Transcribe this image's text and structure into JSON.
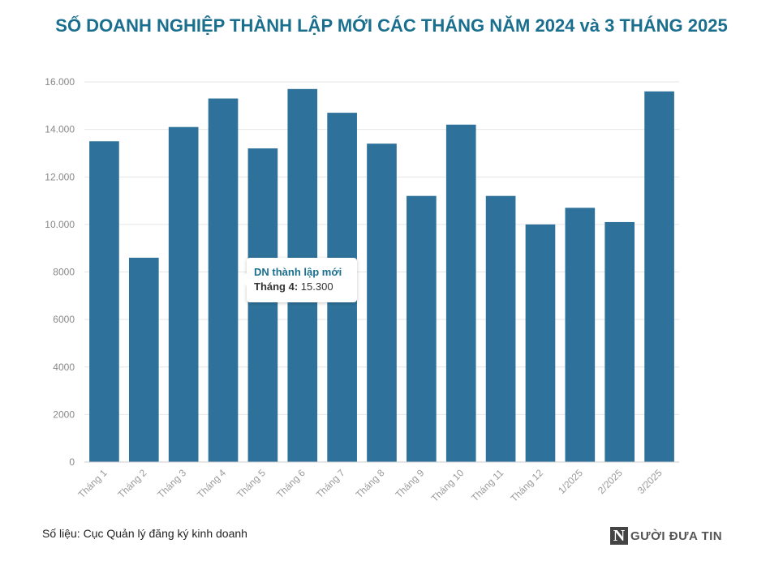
{
  "chart_data": {
    "type": "bar",
    "title": "SỐ DOANH NGHIỆP THÀNH LẬP MỚI CÁC THÁNG NĂM 2024 và 3 THÁNG 2025",
    "categories": [
      "Tháng 1",
      "Tháng 2",
      "Tháng 3",
      "Tháng 4",
      "Tháng 5",
      "Tháng 6",
      "Tháng 7",
      "Tháng 8",
      "Tháng 9",
      "Tháng 10",
      "Tháng 11",
      "Tháng 12",
      "1/2025",
      "2/2025",
      "3/2025"
    ],
    "series": [
      {
        "name": "DN thành lập mới",
        "values": [
          13500,
          8600,
          14100,
          15300,
          13200,
          15700,
          14700,
          13400,
          11200,
          14200,
          11200,
          10000,
          10700,
          10100,
          15600
        ]
      }
    ],
    "ylim": [
      0,
      16000
    ],
    "yticks": [
      0,
      2000,
      4000,
      6000,
      8000,
      10000,
      12000,
      14000,
      16000
    ],
    "ytick_labels": [
      "0",
      "2000",
      "4000",
      "6000",
      "8000",
      "10.000",
      "12.000",
      "14.000",
      "16.000"
    ],
    "grid": true,
    "legend": "none",
    "bar_color": "#2e729b",
    "tooltip": {
      "series": "DN thành lập mới",
      "label": "Tháng 4:",
      "value": "15.300"
    }
  },
  "source": "Số liệu: Cục Quản lý đăng ký kinh doanh",
  "logo": {
    "letter": "N",
    "text": "GƯỜI ĐƯA TIN"
  }
}
